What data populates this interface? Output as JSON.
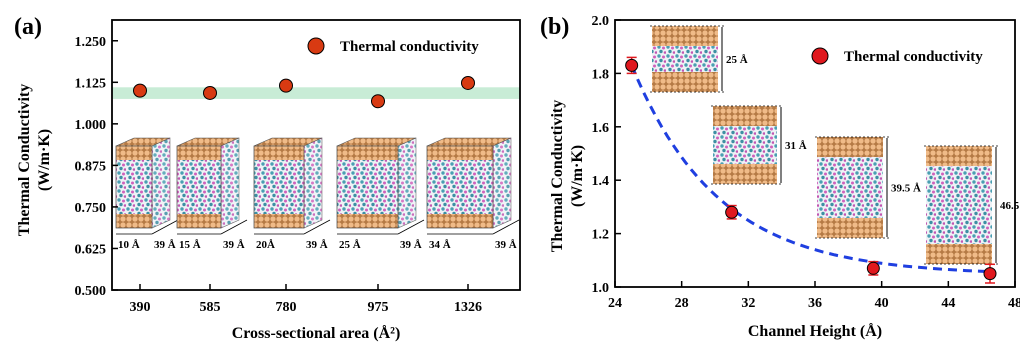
{
  "chart_data": [
    {
      "panel_label": "(a)",
      "type": "scatter",
      "xlabel": "Cross-sectional area (Å²)",
      "ylabel_line1": "Thermal Conductivity",
      "ylabel_line2": "(W/m·K)",
      "categories": [
        "390",
        "585",
        "780",
        "975",
        "1326"
      ],
      "yticks": [
        "0.500",
        "0.625",
        "0.750",
        "0.875",
        "1.000",
        "1.125",
        "1.250"
      ],
      "ylim": [
        0.5,
        1.3125
      ],
      "series": [
        {
          "name": "Thermal conductivity",
          "values": [
            1.1,
            1.093,
            1.115,
            1.068,
            1.123
          ]
        }
      ],
      "band": [
        1.075,
        1.11
      ],
      "band_color": "#c8ecd6",
      "marker_color": "#d83a12",
      "inset_widths": [
        "10 Å",
        "15 Å",
        "20Å",
        "25 Å",
        "34 Å"
      ],
      "inset_depth": "39 Å",
      "legend_position": "top-right"
    },
    {
      "panel_label": "(b)",
      "type": "scatter",
      "xlabel": "Channel Height (Å)",
      "ylabel_line1": "Thermal Conductivity",
      "ylabel_line2": "(W/m·K)",
      "xticks": [
        "24",
        "28",
        "32",
        "36",
        "40",
        "44",
        "48"
      ],
      "yticks": [
        "1.0",
        "1.2",
        "1.4",
        "1.6",
        "1.8",
        "2.0"
      ],
      "xlim": [
        24,
        48
      ],
      "ylim": [
        1.0,
        2.0
      ],
      "series": [
        {
          "name": "Thermal conductivity",
          "x": [
            25,
            31,
            39.5,
            46.5
          ],
          "y": [
            1.83,
            1.28,
            1.07,
            1.05
          ],
          "err": [
            0.03,
            0.025,
            0.025,
            0.035
          ]
        }
      ],
      "fit_color": "#1f3fe0",
      "marker_color": "#e0181e",
      "inset_heights": [
        "25 Å",
        "31 Å",
        "39.5 Å",
        "46.5"
      ],
      "legend_position": "top-right"
    }
  ]
}
